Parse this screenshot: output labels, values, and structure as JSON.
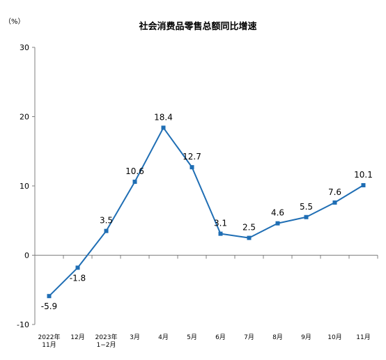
{
  "chart_data": {
    "type": "line",
    "title": "社会消费品零售总额同比增速",
    "unit_label": "（%）",
    "categories": [
      [
        "2022年",
        "11月"
      ],
      [
        "12月"
      ],
      [
        "2023年",
        "1−2月"
      ],
      [
        "3月"
      ],
      [
        "4月"
      ],
      [
        "5月"
      ],
      [
        "6月"
      ],
      [
        "7月"
      ],
      [
        "8月"
      ],
      [
        "9月"
      ],
      [
        "10月"
      ],
      [
        "11月"
      ]
    ],
    "series": [
      {
        "values": [
          -5.9,
          -1.8,
          3.5,
          10.6,
          18.4,
          12.7,
          3.1,
          2.5,
          4.6,
          5.5,
          7.6,
          10.1
        ],
        "labels": [
          "-5.9",
          "-1.8",
          "3.5",
          "10.6",
          "18.4",
          "12.7",
          "3.1",
          "2.5",
          "4.6",
          "5.5",
          "7.6",
          "10.1"
        ]
      }
    ],
    "ylim": [
      -10,
      30
    ],
    "yticks": [
      -10,
      0,
      10,
      20,
      30
    ],
    "ytick_labels": [
      "-10",
      "0",
      "10",
      "20",
      "30"
    ],
    "grid": false,
    "line_color": "#1f6eb4",
    "axis_color": "#7f7f7f"
  }
}
